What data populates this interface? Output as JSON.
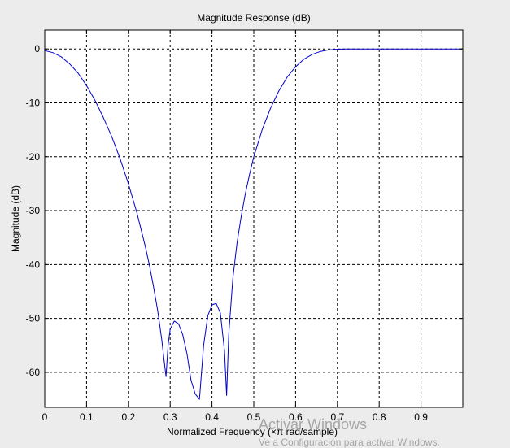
{
  "chart_data": {
    "type": "line",
    "title": "Magnitude Response (dB)",
    "xlabel": "Normalized Frequency (×π rad/sample)",
    "ylabel": "Magnitude (dB)",
    "xlim": [
      0,
      1
    ],
    "ylim": [
      -66.5,
      3.5
    ],
    "xticks": [
      0,
      0.1,
      0.2,
      0.3,
      0.4,
      0.5,
      0.6,
      0.7,
      0.8,
      0.9
    ],
    "xtick_labels": [
      "0",
      "0.1",
      "0.2",
      "0.3",
      "0.4",
      "0.5",
      "0.6",
      "0.7",
      "0.8",
      "0.9"
    ],
    "yticks": [
      0,
      -10,
      -20,
      -30,
      -40,
      -50,
      -60
    ],
    "ytick_labels": [
      "0",
      "-10",
      "-20",
      "-30",
      "-40",
      "-50",
      "-60"
    ],
    "grid": true,
    "line_color": "#0000cc",
    "series": [
      {
        "x": [
          0,
          0.02,
          0.04,
          0.06,
          0.08,
          0.1,
          0.12,
          0.14,
          0.16,
          0.18,
          0.2,
          0.22,
          0.24,
          0.25,
          0.26,
          0.27,
          0.28,
          0.285,
          0.29,
          0.295,
          0.3,
          0.31,
          0.32,
          0.33,
          0.34,
          0.35,
          0.36,
          0.37,
          0.38,
          0.39,
          0.4,
          0.41,
          0.42,
          0.43,
          0.435,
          0.44,
          0.45,
          0.46,
          0.47,
          0.48,
          0.49,
          0.5,
          0.52,
          0.54,
          0.56,
          0.58,
          0.6,
          0.62,
          0.64,
          0.66,
          0.68,
          0.7,
          0.72,
          0.74,
          0.8,
          0.9,
          1.0
        ],
        "y": [
          -0.3,
          -0.7,
          -1.5,
          -2.8,
          -4.5,
          -6.8,
          -9.5,
          -12.7,
          -16.2,
          -20.3,
          -25.0,
          -30.3,
          -36.5,
          -40.0,
          -44.0,
          -48.5,
          -54.0,
          -57.5,
          -60.8,
          -55.0,
          -52.0,
          -50.5,
          -51.0,
          -53.0,
          -56.5,
          -61.5,
          -64.0,
          -65.0,
          -55.0,
          -49.5,
          -47.5,
          -47.2,
          -49.0,
          -56.0,
          -64.3,
          -53.0,
          -42.5,
          -36.0,
          -31.0,
          -26.8,
          -23.2,
          -20.0,
          -15.0,
          -11.0,
          -7.8,
          -5.2,
          -3.3,
          -1.9,
          -1.0,
          -0.45,
          -0.15,
          -0.05,
          0,
          0,
          0,
          0,
          0
        ]
      }
    ]
  },
  "watermark": {
    "title": "Activar Windows",
    "subtitle": "Ve a Configuración para activar Windows."
  }
}
